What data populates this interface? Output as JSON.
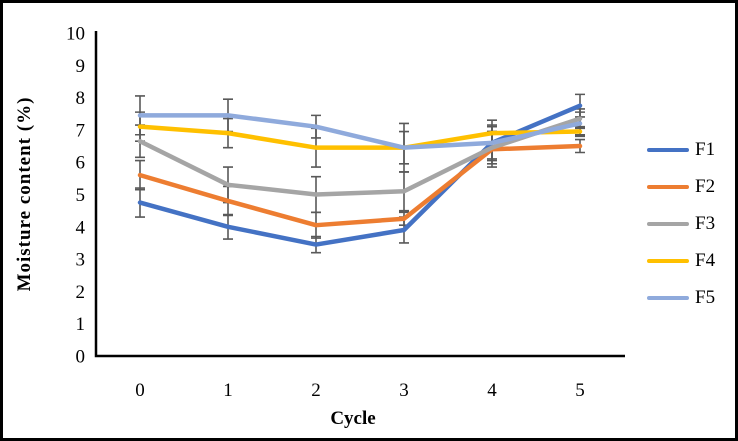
{
  "chart_data": {
    "type": "line",
    "title": "",
    "xlabel": "Cycle",
    "ylabel": "Moisture content (%)",
    "categories": [
      "0",
      "1",
      "2",
      "3",
      "4",
      "5"
    ],
    "ytick_labels": [
      "0",
      "1",
      "2",
      "3",
      "4",
      "5",
      "6",
      "7",
      "8",
      "9",
      "10"
    ],
    "ylim": [
      0,
      10
    ],
    "ytick_step": 1,
    "grid": false,
    "legend_position": "right",
    "axis_color": "#000000",
    "error_bar_color": "#595959",
    "series": [
      {
        "name": "F1",
        "color": "#4472C4",
        "values": [
          4.75,
          4.0,
          3.45,
          3.9,
          6.6,
          7.75
        ],
        "errors": [
          0.45,
          0.38,
          0.25,
          0.4,
          0.55,
          0.35
        ]
      },
      {
        "name": "F2",
        "color": "#ED7D31",
        "values": [
          5.6,
          4.8,
          4.05,
          4.25,
          6.4,
          6.5
        ],
        "errors": [
          0.45,
          0.45,
          0.4,
          0.2,
          0.55,
          0.2
        ]
      },
      {
        "name": "F3",
        "color": "#A5A5A5",
        "values": [
          6.65,
          5.3,
          5.0,
          5.1,
          6.45,
          7.35
        ],
        "errors": [
          0.5,
          0.55,
          0.55,
          0.6,
          0.5,
          0.3
        ]
      },
      {
        "name": "F4",
        "color": "#FFC000",
        "values": [
          7.1,
          6.9,
          6.45,
          6.45,
          6.9,
          6.95
        ],
        "errors": [
          0.45,
          0.45,
          0.6,
          0.5,
          0.4,
          0.15
        ]
      },
      {
        "name": "F5",
        "color": "#8FAADC",
        "values": [
          7.45,
          7.45,
          7.1,
          6.45,
          6.6,
          7.2
        ],
        "errors": [
          0.6,
          0.5,
          0.35,
          0.75,
          0.5,
          0.35
        ]
      }
    ]
  }
}
